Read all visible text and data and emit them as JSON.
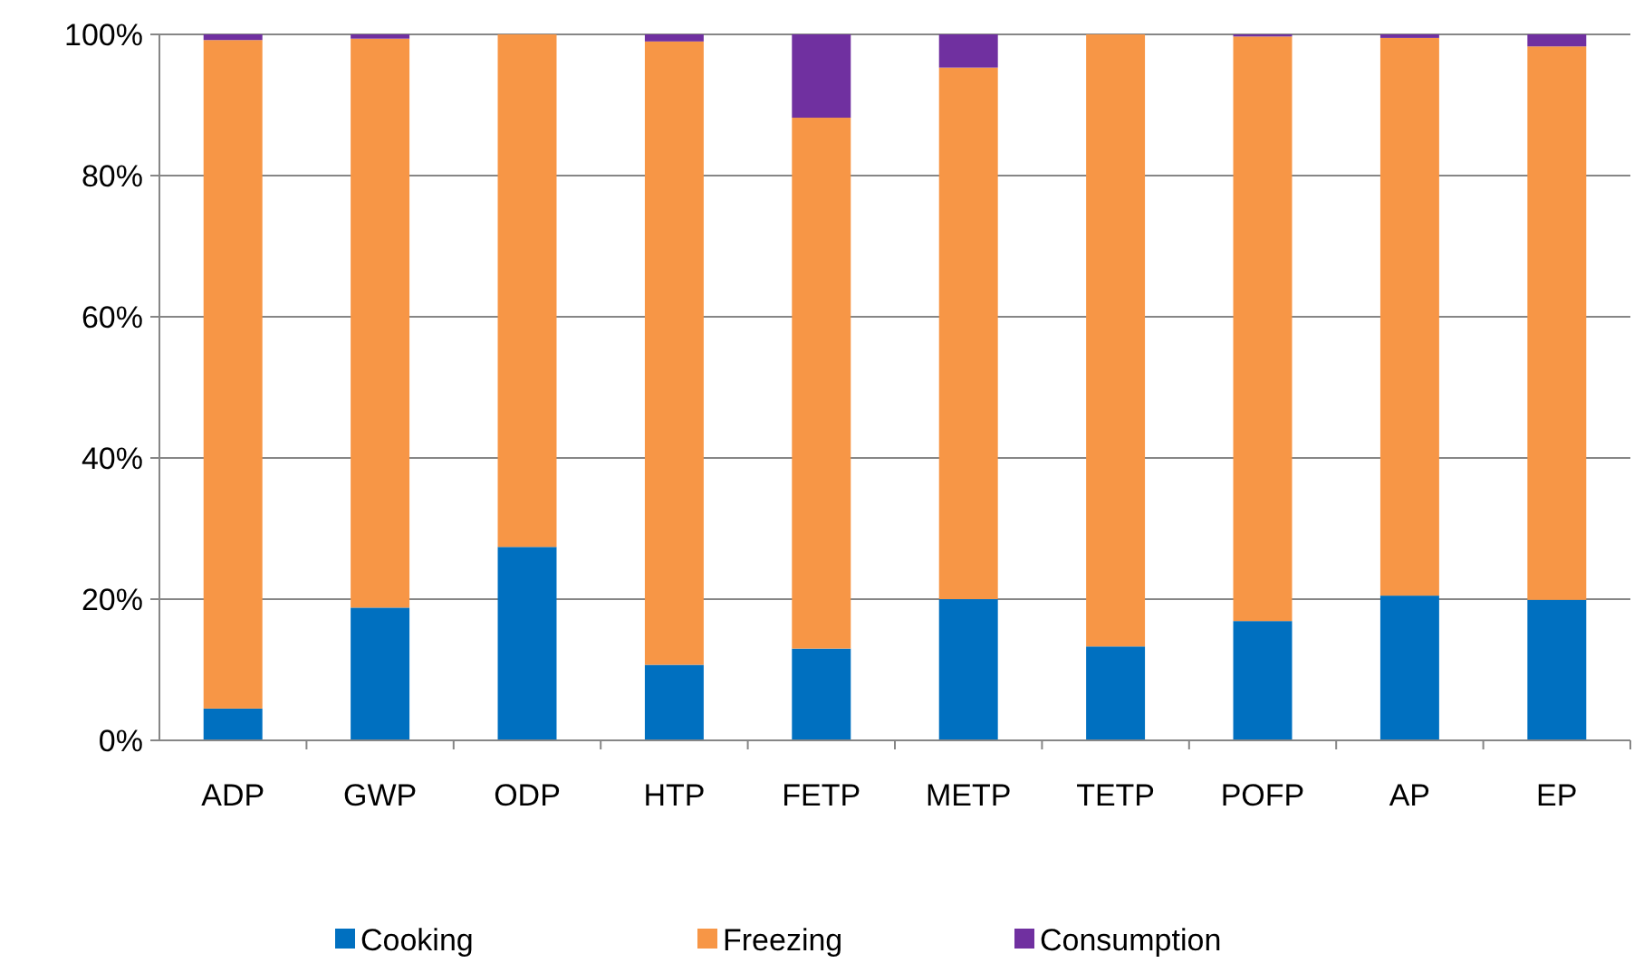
{
  "chart_data": {
    "type": "bar",
    "stacked": true,
    "categories": [
      "ADP",
      "GWP",
      "ODP",
      "HTP",
      "FETP",
      "METP",
      "TETP",
      "POFP",
      "AP",
      "EP"
    ],
    "series": [
      {
        "name": "Cooking",
        "color": "#0070c0",
        "values": [
          4.5,
          18.8,
          27.4,
          10.7,
          13,
          20,
          13.3,
          16.9,
          20.5,
          19.9
        ]
      },
      {
        "name": "Freezing",
        "color": "#f79646",
        "values": [
          94.7,
          80.6,
          72.6,
          88.3,
          75.2,
          75.3,
          86.7,
          82.8,
          79,
          78.4
        ]
      },
      {
        "name": "Consumption",
        "color": "#7030a0",
        "values": [
          0.8,
          0.6,
          0,
          1,
          11.8,
          4.7,
          0,
          0.3,
          0.5,
          1.7
        ]
      }
    ],
    "ylim": [
      0,
      100
    ],
    "yticks": [
      {
        "value": 0,
        "label": "0%"
      },
      {
        "value": 20,
        "label": "20%"
      },
      {
        "value": 40,
        "label": "40%"
      },
      {
        "value": 60,
        "label": "60%"
      },
      {
        "value": 80,
        "label": "80%"
      },
      {
        "value": 100,
        "label": "100%"
      }
    ],
    "grid": "y",
    "legend": "bottom"
  }
}
